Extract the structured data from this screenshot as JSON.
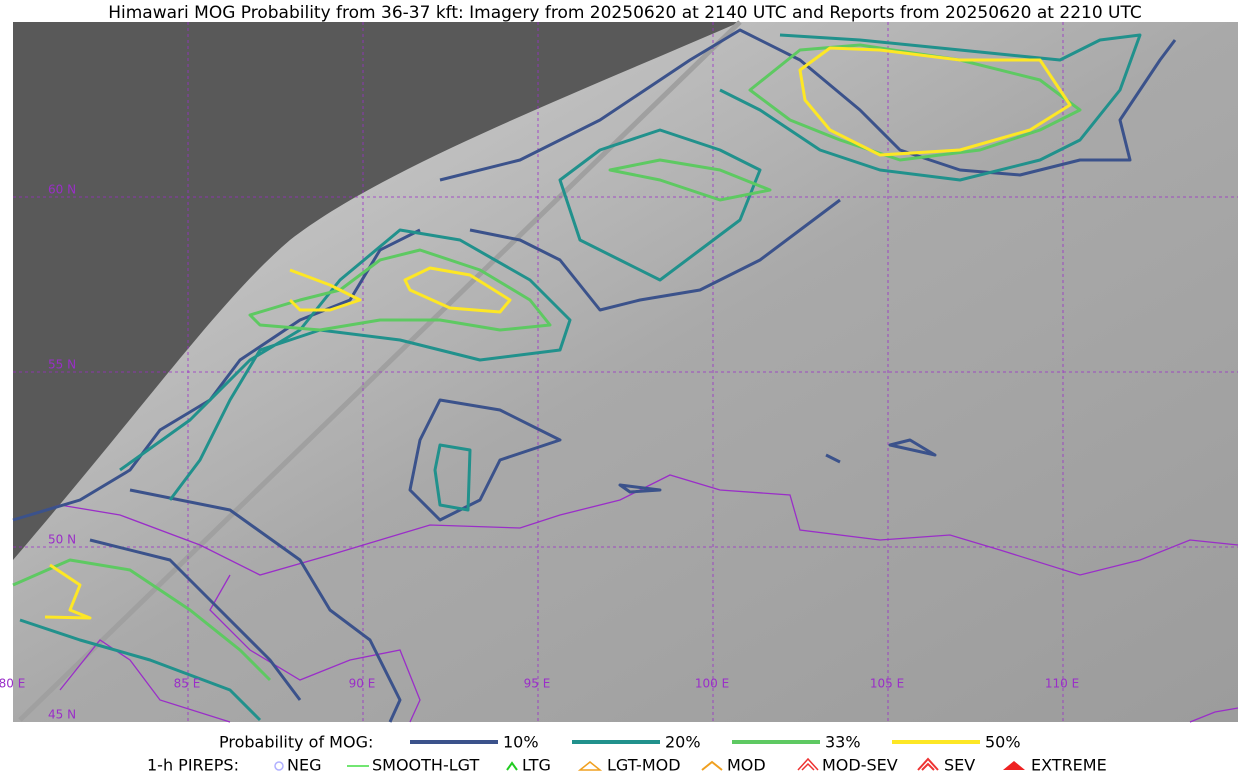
{
  "header": {
    "title": "Himawari MOG Probability from 36-37 kft: Imagery from 20250620 at 2140 UTC and Reports from 20250620 at 2210 UTC"
  },
  "map": {
    "lat_labels": [
      "60 N",
      "55 N",
      "50 N",
      "45 N"
    ],
    "lon_labels": [
      "80 E",
      "85 E",
      "90 E",
      "95 E",
      "100 E",
      "105 E",
      "110 E"
    ]
  },
  "legend": {
    "probability_title": "Probability of MOG:",
    "probability_levels": [
      "10%",
      "20%",
      "33%",
      "50%"
    ],
    "pireps_title": "1-h PIREPS:",
    "pireps": [
      "NEG",
      "SMOOTH-LGT",
      "LTG",
      "LGT-MOD",
      "MOD",
      "MOD-SEV",
      "SEV",
      "EXTREME"
    ]
  }
}
